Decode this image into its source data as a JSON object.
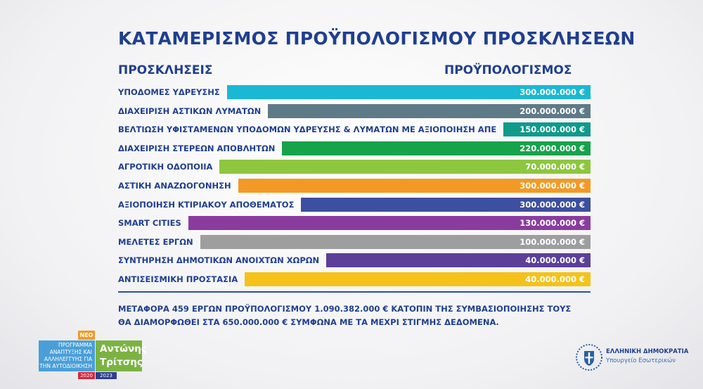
{
  "chart_data": {
    "type": "bar",
    "orientation": "horizontal",
    "title": "ΚΑΤΑΜΕΡΙΣΜΟΣ ΠΡΟΫΠΟΛΟΓΙΣΜΟΥ ΠΡΟΣΚΛΗΣΕΩΝ",
    "category_header": "ΠΡΟΣΚΛΗΣΕΙΣ",
    "value_header": "ΠΡΟΫΠΟΛΟΓΙΣΜΟΣ",
    "categories": [
      "ΥΠΟΔΟΜΕΣ ΥΔΡΕΥΣΗΣ",
      "ΔΙΑΧΕΙΡΙΣΗ ΑΣΤΙΚΩΝ ΛΥΜΑΤΩΝ",
      "ΒΕΛΤΙΩΣΗ ΥΦΙΣΤΑΜΕΝΩΝ ΥΠΟΔΟΜΩΝ ΥΔΡΕΥΣΗΣ & ΛΥΜΑΤΩΝ ΜΕ ΑΞΙΟΠΟΙΗΣΗ ΑΠΕ",
      "ΔΙΑΧΕΙΡΙΣΗ ΣΤΕΡΕΩΝ ΑΠΟΒΛΗΤΩΝ",
      "ΑΓΡΟΤΙΚΗ ΟΔΟΠΟΙΙΑ",
      "ΑΣΤΙΚΗ ΑΝΑΖΩΟΓΟΝΗΣΗ",
      "ΑΞΙΟΠΟΙΗΣΗ ΚΤΙΡΙΑΚΟΥ ΑΠΟΘΕΜΑΤΟΣ",
      "SMART CITIES",
      "ΜΕΛΕΤΕΣ ΕΡΓΩΝ",
      "ΣΥΝΤΗΡΗΣΗ ΔΗΜΟΤΙΚΩΝ ΑΝΟΙΧΤΩΝ ΧΩΡΩΝ",
      "ΑΝΤΙΣΕΙΣΜΙΚΗ ΠΡΟΣΤΑΣΙΑ"
    ],
    "values": [
      300000000,
      200000000,
      150000000,
      220000000,
      70000000,
      300000000,
      300000000,
      130000000,
      100000000,
      40000000,
      40000000
    ],
    "value_labels": [
      "300.000.000 €",
      "200.000.000 €",
      "150.000.000 €",
      "220.000.000 €",
      "70.000.000 €",
      "300.000.000 €",
      "300.000.000 €",
      "130.000.000 €",
      "100.000.000 €",
      "40.000.000 €",
      "40.000.000 €"
    ],
    "colors": [
      "#1ab8d4",
      "#5f7a87",
      "#0f9a8a",
      "#16a34a",
      "#8dc63f",
      "#f29a25",
      "#3d4fa0",
      "#8a3c9e",
      "#9e9e9e",
      "#5b3f99",
      "#f5c21b"
    ]
  },
  "note": {
    "line1": "ΜΕΤΑΦΟΡΑ 459 ΕΡΓΩΝ ΠΡΟΫΠΟΛΟΓΙΣΜΟΥ  1.090.382.000 € ΚΑΤΟΠΙΝ ΤΗΣ ΣΥΜΒΑΣΙΟΠΟΙΗΣΗΣ ΤΟΥΣ",
    "line2": "ΘΑ ΔΙΑΜΟΡΦΩΘΕΙ ΣΤΑ 650.000.000 € ΣΥΜΦΩΝΑ ΜΕ  ΤΑ ΜΕΧΡΙ ΣΤΙΓΜΗΣ ΔΕΔΟΜΕΝΑ."
  },
  "logo_left": {
    "neo": "ΝΕΟ",
    "program_lines": [
      "ΠΡΟΓΡΑΜΜΑ",
      "ΑΝΑΠΤΥΞΗΣ ΚΑΙ",
      "ΑΛΛΗΛΕΓΓΥΗΣ ΓΙΑ",
      "ΤΗΝ ΑΥΤΟΔΙΟΙΚΗΣΗ"
    ],
    "name_lines": [
      "Αντώνης",
      "Τρίτσης"
    ],
    "year_start": "2020",
    "year_end": "2023"
  },
  "logo_right": {
    "line1": "ΕΛΛΗΝΙΚΗ ΔΗΜΟΚΡΑΤΙΑ",
    "line2": "Υπουργείο Εσωτερικών"
  }
}
